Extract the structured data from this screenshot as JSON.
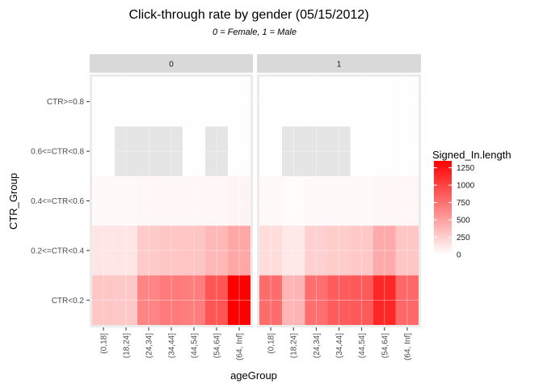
{
  "chart_data": {
    "type": "heatmap",
    "title": "Click-through rate by gender (05/15/2012)",
    "subtitle": "0 = Female, 1 = Male",
    "xlabel": "ageGroup",
    "ylabel": "CTR_Group",
    "facets": [
      "0",
      "1"
    ],
    "x_categories": [
      "(0,18]",
      "(18,24]",
      "(24,34]",
      "(34,44]",
      "(44,54]",
      "(54,64]",
      "(64, Inf]"
    ],
    "y_categories": [
      "CTR<0.2",
      "0.2<=CTR<0.4",
      "0.4<=CTR<0.6",
      "0.6<=CTR<0.8",
      "CTR>=0.8"
    ],
    "legend": {
      "title": "Signed_In.length",
      "ticks": [
        0,
        250,
        500,
        750,
        1000,
        1250
      ],
      "range": [
        0,
        1350
      ],
      "low_color": "#ffffff",
      "high_color": "#ff0000",
      "missing_color": "#e5e5e5"
    },
    "values": {
      "0": [
        [
          300,
          290,
          650,
          700,
          690,
          900,
          1350
        ],
        [
          140,
          140,
          280,
          300,
          310,
          380,
          470
        ],
        [
          30,
          30,
          40,
          40,
          40,
          50,
          60
        ],
        [
          5,
          null,
          null,
          null,
          5,
          null,
          5
        ],
        [
          5,
          5,
          5,
          5,
          5,
          5,
          5
        ]
      ],
      "1": [
        [
          780,
          390,
          760,
          860,
          880,
          1150,
          800
        ],
        [
          180,
          120,
          250,
          270,
          290,
          450,
          300
        ],
        [
          30,
          20,
          30,
          30,
          30,
          40,
          40
        ],
        [
          5,
          null,
          null,
          null,
          5,
          5,
          5
        ],
        [
          5,
          5,
          5,
          5,
          5,
          5,
          5
        ]
      ]
    }
  }
}
